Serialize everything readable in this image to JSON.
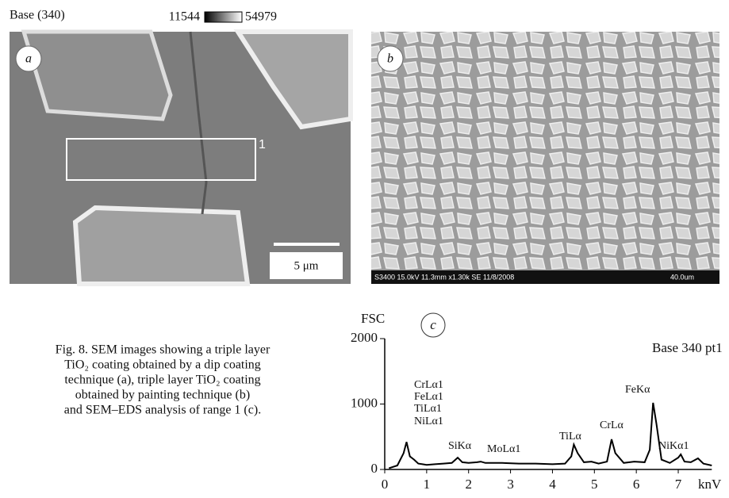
{
  "panel_a": {
    "title": "Base (340)",
    "scale_min": "11544",
    "scale_max": "54979",
    "label": "a",
    "region_label": "1",
    "scale_bar": "5 μm"
  },
  "panel_b": {
    "label": "b",
    "info": "S3400 15.0kV 11.3mm x1.30k SE  11/8/2008",
    "scale": "40.0um"
  },
  "caption": [
    "Fig. 8. SEM images showing a triple layer",
    "TiO₂ coating obtained by a dip coating",
    "technique (a), triple layer TiO₂ coating",
    "obtained by painting technique (b)",
    "and SEM–EDS analysis of range 1 (c)."
  ],
  "chart_data": {
    "type": "line",
    "label": "c",
    "y_label": "FSC",
    "x_label": "knV",
    "annotation": "Base 340 pt1",
    "peak_labels": [
      "CrLα1",
      "FeLα1",
      "TiLα1",
      "NiLα1",
      "SiKα",
      "MoLα1",
      "TiLα",
      "CrLα",
      "FeKα",
      "NiKα1"
    ],
    "x": [
      0.1,
      0.3,
      0.45,
      0.52,
      0.6,
      0.7,
      0.8,
      0.9,
      1.0,
      1.2,
      1.4,
      1.6,
      1.74,
      1.85,
      2.0,
      2.2,
      2.29,
      2.4,
      2.8,
      3.2,
      3.6,
      4.0,
      4.3,
      4.45,
      4.51,
      4.6,
      4.75,
      4.93,
      5.1,
      5.3,
      5.41,
      5.5,
      5.7,
      5.95,
      6.2,
      6.32,
      6.4,
      6.48,
      6.6,
      6.8,
      7.0,
      7.06,
      7.15,
      7.3,
      7.47,
      7.6,
      7.8
    ],
    "values": [
      20,
      60,
      250,
      420,
      200,
      150,
      90,
      80,
      70,
      80,
      90,
      100,
      180,
      110,
      100,
      110,
      120,
      100,
      100,
      90,
      90,
      80,
      90,
      200,
      380,
      250,
      110,
      120,
      90,
      120,
      460,
      250,
      100,
      120,
      110,
      300,
      1020,
      700,
      150,
      100,
      180,
      230,
      120,
      110,
      170,
      90,
      60
    ],
    "color": "#000000",
    "xlim": [
      0,
      7.8
    ],
    "ylim": [
      0,
      2000
    ],
    "xticks": [
      0,
      1,
      2,
      3,
      4,
      5,
      6,
      7
    ],
    "yticks": [
      0,
      1000,
      2000
    ]
  }
}
